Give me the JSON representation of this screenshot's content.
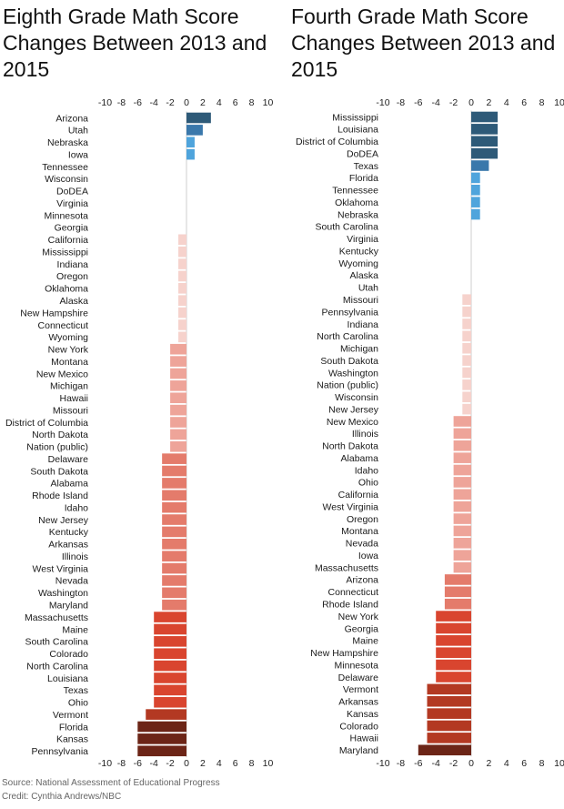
{
  "source": "Source: National Assessment of Educational Progress",
  "credit": "Credit: Cynthia Andrews/NBC",
  "chart_data": [
    {
      "type": "bar",
      "orientation": "horizontal",
      "title": "Eighth Grade Math Score Changes Between 2013 and 2015",
      "xlim": [
        -10,
        10
      ],
      "xticks": [
        -10,
        -8,
        -6,
        -4,
        -2,
        0,
        2,
        4,
        6,
        8,
        10
      ],
      "categories": [
        "Arizona",
        "Utah",
        "Nebraska",
        "Iowa",
        "Tennessee",
        "Wisconsin",
        "DoDEA",
        "Virginia",
        "Minnesota",
        "Georgia",
        "California",
        "Mississippi",
        "Indiana",
        "Oregon",
        "Oklahoma",
        "Alaska",
        "New Hampshire",
        "Connecticut",
        "Wyoming",
        "New York",
        "Montana",
        "New Mexico",
        "Michigan",
        "Hawaii",
        "Missouri",
        "District of Columbia",
        "North Dakota",
        "Nation (public)",
        "Delaware",
        "South Dakota",
        "Alabama",
        "Rhode Island",
        "Idaho",
        "New Jersey",
        "Kentucky",
        "Arkansas",
        "Illinois",
        "West Virginia",
        "Nevada",
        "Washington",
        "Maryland",
        "Massachusetts",
        "Maine",
        "South Carolina",
        "Colorado",
        "North Carolina",
        "Louisiana",
        "Texas",
        "Ohio",
        "Vermont",
        "Florida",
        "Kansas",
        "Pennsylvania"
      ],
      "values": [
        3,
        2,
        1,
        1,
        0,
        0,
        0,
        0,
        0,
        0,
        -1,
        -1,
        -1,
        -1,
        -1,
        -1,
        -1,
        -1,
        -1,
        -2,
        -2,
        -2,
        -2,
        -2,
        -2,
        -2,
        -2,
        -2,
        -3,
        -3,
        -3,
        -3,
        -3,
        -3,
        -3,
        -3,
        -3,
        -3,
        -3,
        -3,
        -3,
        -4,
        -4,
        -4,
        -4,
        -4,
        -4,
        -4,
        -4,
        -5,
        -6,
        -6,
        -6
      ]
    },
    {
      "type": "bar",
      "orientation": "horizontal",
      "title": "Fourth Grade Math Score Changes Between 2013 and 2015",
      "xlim": [
        -10,
        10
      ],
      "xticks": [
        -10,
        -8,
        -6,
        -4,
        -2,
        0,
        2,
        4,
        6,
        8,
        10
      ],
      "categories": [
        "Mississippi",
        "Louisiana",
        "District of Columbia",
        "DoDEA",
        "Texas",
        "Florida",
        "Tennessee",
        "Oklahoma",
        "Nebraska",
        "South Carolina",
        "Virginia",
        "Kentucky",
        "Wyoming",
        "Alaska",
        "Utah",
        "Missouri",
        "Pennsylvania",
        "Indiana",
        "North Carolina",
        "Michigan",
        "South Dakota",
        "Washington",
        "Nation (public)",
        "Wisconsin",
        "New Jersey",
        "New Mexico",
        "Illinois",
        "North Dakota",
        "Alabama",
        "Idaho",
        "Ohio",
        "California",
        "West Virginia",
        "Oregon",
        "Montana",
        "Nevada",
        "Iowa",
        "Massachusetts",
        "Arizona",
        "Connecticut",
        "Rhode Island",
        "New York",
        "Georgia",
        "Maine",
        "New Hampshire",
        "Minnesota",
        "Delaware",
        "Vermont",
        "Arkansas",
        "Kansas",
        "Colorado",
        "Hawaii",
        "Maryland"
      ],
      "values": [
        3,
        3,
        3,
        3,
        2,
        1,
        1,
        1,
        1,
        0,
        0,
        0,
        0,
        0,
        0,
        -1,
        -1,
        -1,
        -1,
        -1,
        -1,
        -1,
        -1,
        -1,
        -1,
        -2,
        -2,
        -2,
        -2,
        -2,
        -2,
        -2,
        -2,
        -2,
        -2,
        -2,
        -2,
        -2,
        -3,
        -3,
        -3,
        -4,
        -4,
        -4,
        -4,
        -4,
        -4,
        -5,
        -5,
        -5,
        -5,
        -5,
        -6
      ]
    }
  ],
  "colors": {
    "3": "#2e5a78",
    "2": "#3a78ab",
    "1": "#4fa4dc",
    "-1": "#f6d2cc",
    "-2": "#eea499",
    "-3": "#e47b6b",
    "-4": "#d9452f",
    "-5": "#b33922",
    "-6": "#6c2517"
  }
}
